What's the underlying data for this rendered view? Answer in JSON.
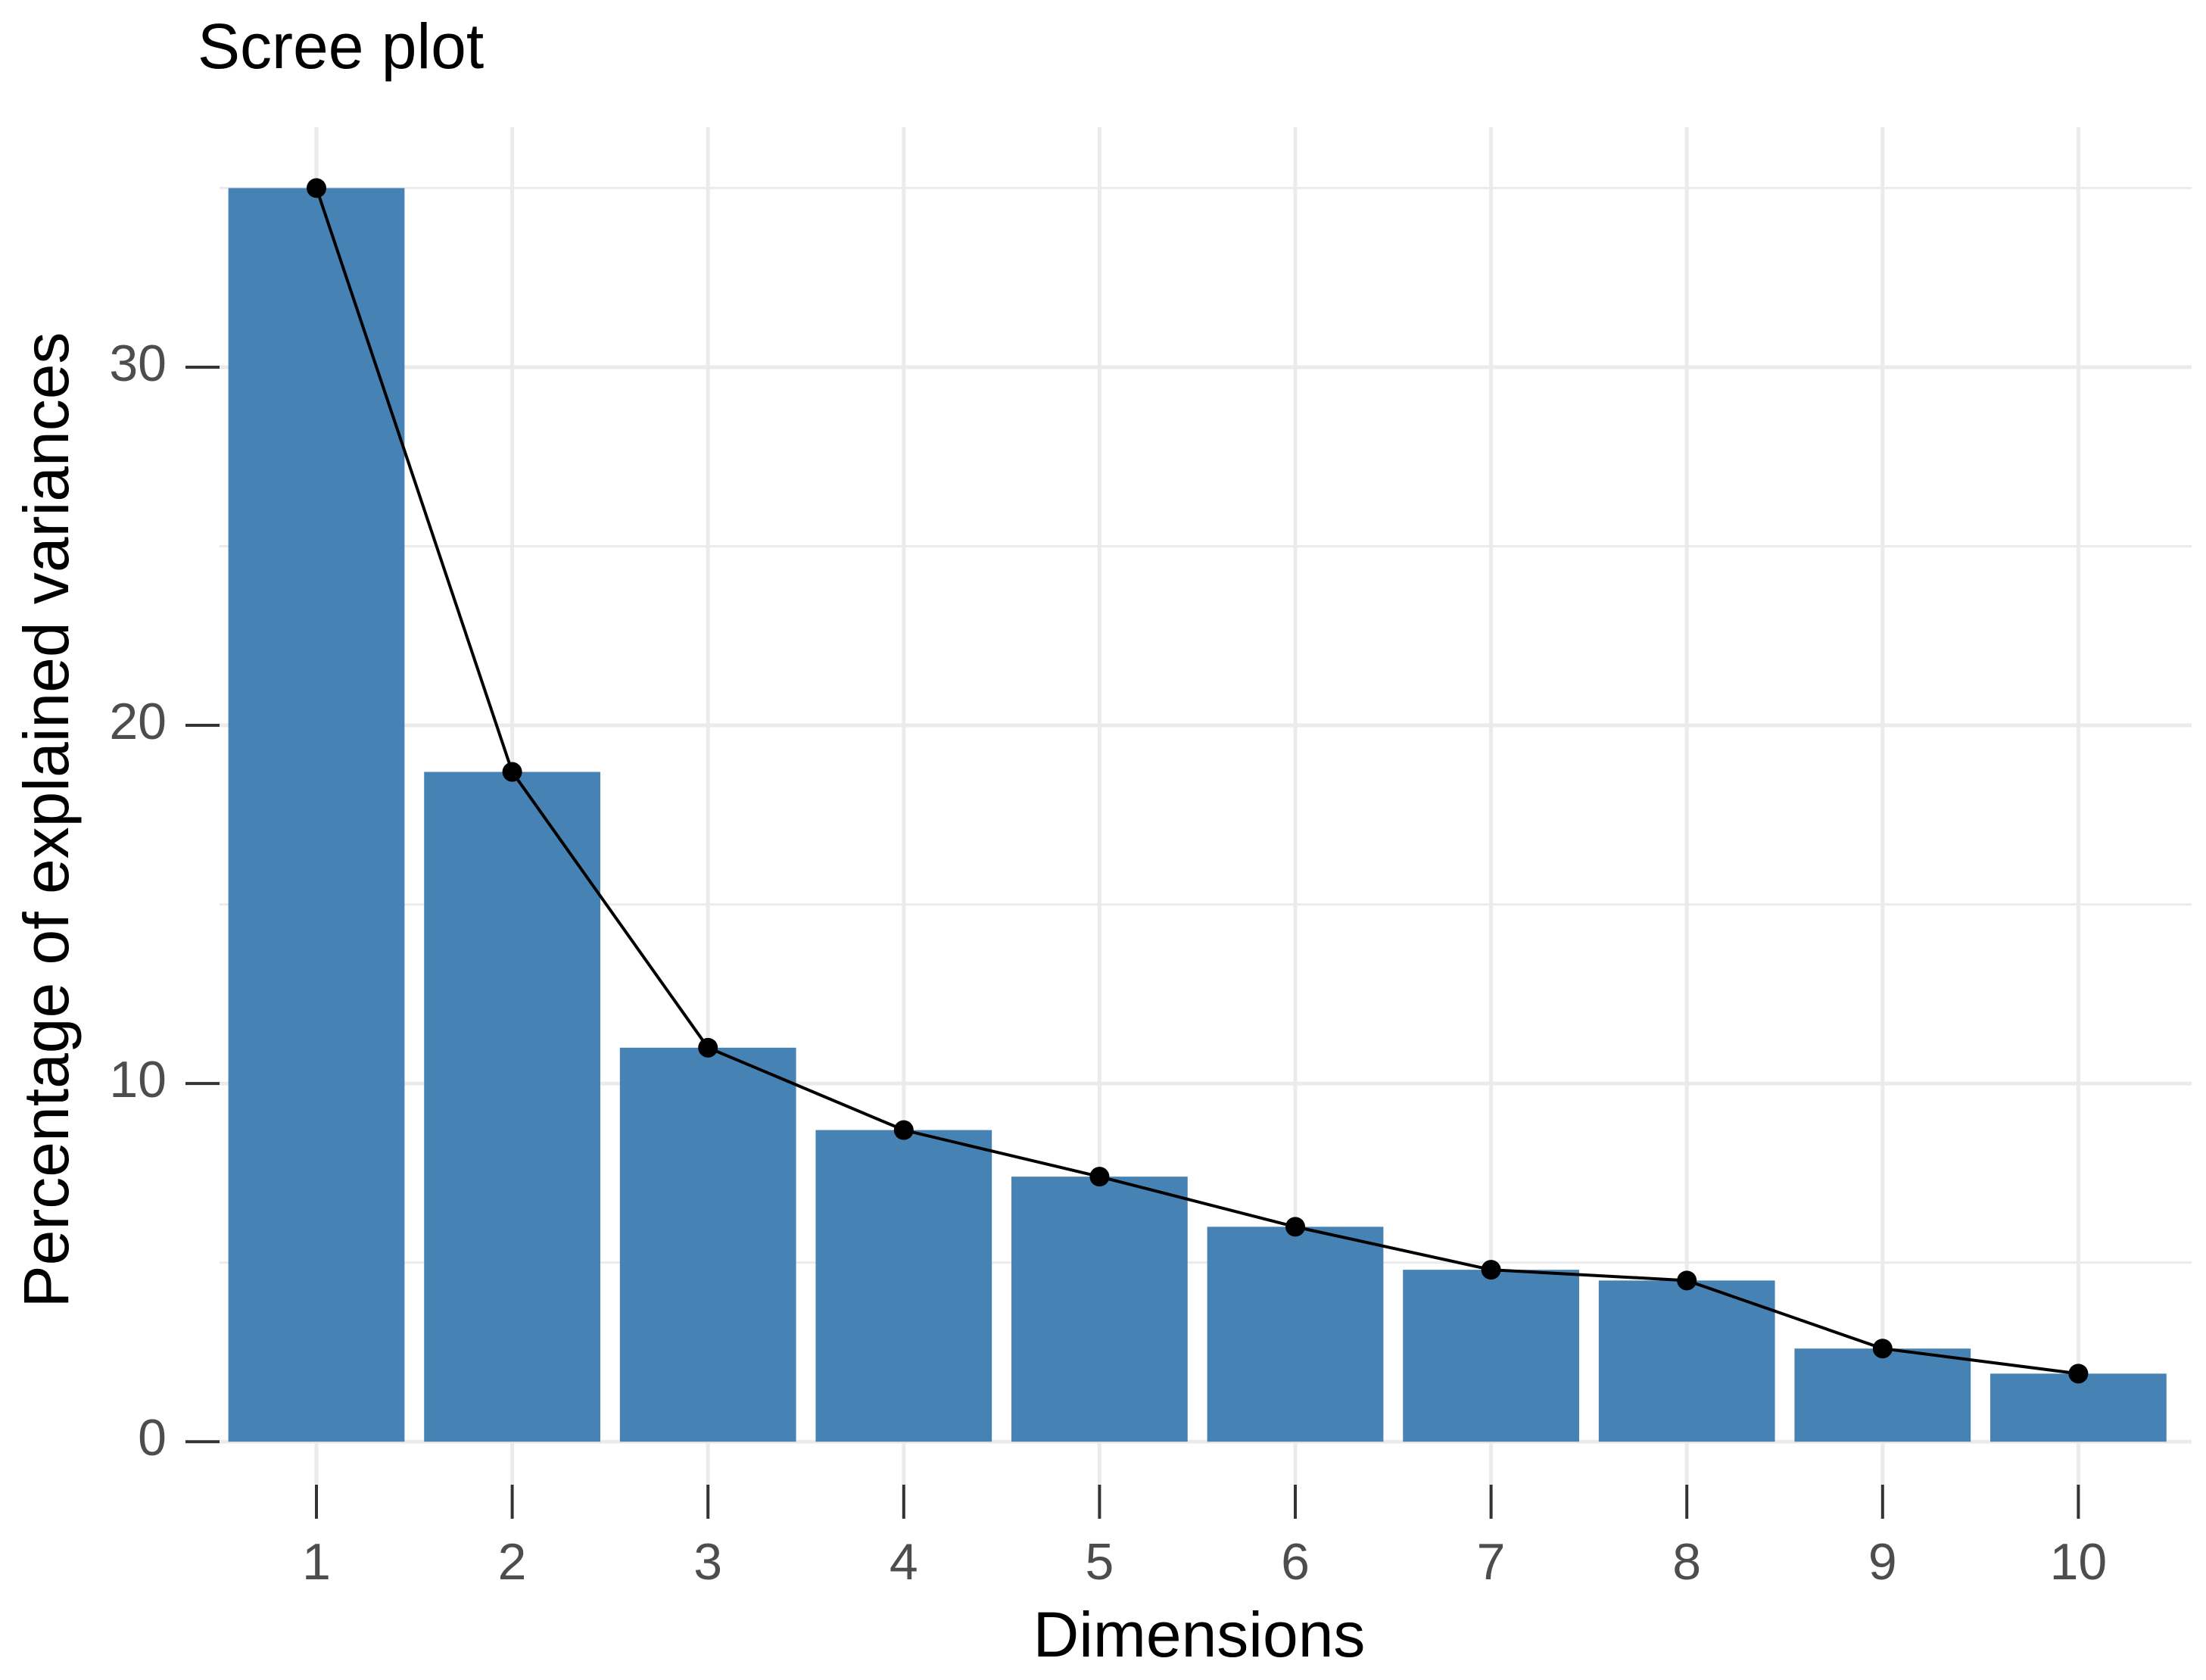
{
  "chart_data": {
    "type": "bar",
    "title": "Scree plot",
    "x_label": "Dimensions",
    "y_label": "Percentage of explained variances",
    "categories": [
      "1",
      "2",
      "3",
      "4",
      "5",
      "6",
      "7",
      "8",
      "9",
      "10"
    ],
    "values": [
      35.0,
      18.7,
      11.0,
      8.7,
      7.4,
      6.0,
      4.8,
      4.5,
      2.6,
      1.9
    ],
    "color": "#4682b4",
    "line_color": "#000000",
    "ylim": [
      -1.2,
      36.7
    ],
    "yticks": [
      0,
      10,
      20,
      30
    ],
    "grid": true
  }
}
